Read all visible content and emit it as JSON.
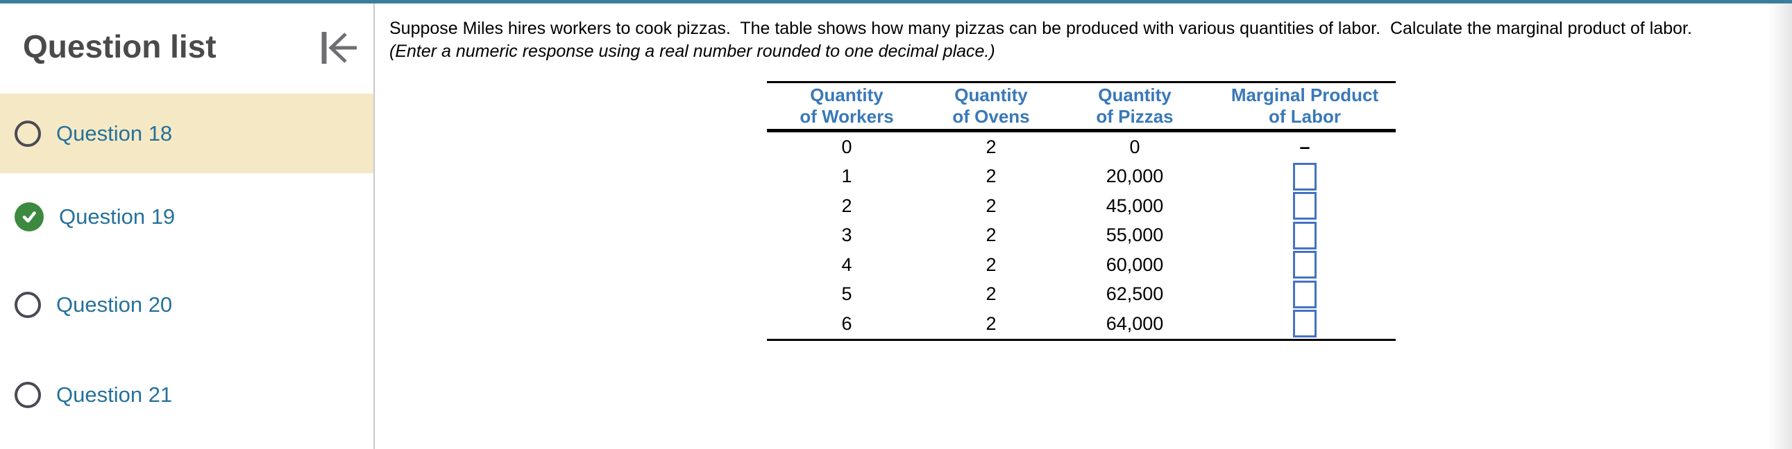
{
  "colors": {
    "top_bar": "#3A7D9C",
    "sidebar_highlight": "#F5E9C5",
    "sidebar_link": "#26719A",
    "completed_green": "#3B8A3F",
    "radio_outline": "#4A4A55",
    "table_header_blue": "#3978B7",
    "input_border_blue": "#4472C4",
    "divider_gray": "#C9C9C9",
    "title_gray": "#4A4A4A"
  },
  "sidebar": {
    "title": "Question list",
    "collapse_icon": "collapse-left-icon",
    "items": [
      {
        "label": "Question 18",
        "status": "unanswered",
        "selected": true
      },
      {
        "label": "Question 19",
        "status": "completed",
        "selected": false
      },
      {
        "label": "Question 20",
        "status": "unanswered",
        "selected": false
      },
      {
        "label": "Question 21",
        "status": "unanswered",
        "selected": false
      }
    ]
  },
  "question": {
    "prompt": "Suppose Miles hires workers to cook pizzas.  The table shows how many pizzas can be produced with various quantities of labor.  Calculate the marginal product of labor.",
    "instruction": "(Enter a numeric response using a real number rounded to one decimal place.)"
  },
  "table": {
    "headers": [
      {
        "line1": "Quantity",
        "line2": "of Workers"
      },
      {
        "line1": "Quantity",
        "line2": "of Ovens"
      },
      {
        "line1": "Quantity",
        "line2": "of Pizzas"
      },
      {
        "line1": "Marginal Product",
        "line2": "of Labor"
      }
    ],
    "rows": [
      {
        "workers": "0",
        "ovens": "2",
        "pizzas": "0",
        "mpl": "–"
      },
      {
        "workers": "1",
        "ovens": "2",
        "pizzas": "20,000",
        "mpl": "input"
      },
      {
        "workers": "2",
        "ovens": "2",
        "pizzas": "45,000",
        "mpl": "input"
      },
      {
        "workers": "3",
        "ovens": "2",
        "pizzas": "55,000",
        "mpl": "input"
      },
      {
        "workers": "4",
        "ovens": "2",
        "pizzas": "60,000",
        "mpl": "input"
      },
      {
        "workers": "5",
        "ovens": "2",
        "pizzas": "62,500",
        "mpl": "input"
      },
      {
        "workers": "6",
        "ovens": "2",
        "pizzas": "64,000",
        "mpl": "input"
      }
    ],
    "input_placeholder": ""
  }
}
